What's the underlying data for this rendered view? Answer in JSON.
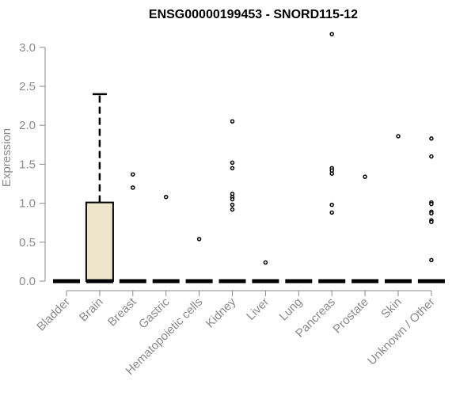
{
  "chart_data": {
    "type": "boxplot",
    "title": "ENSG00000199453 - SNORD115-12",
    "ylabel": "Expression",
    "xlabel": "",
    "ylim": [
      0,
      3.2
    ],
    "yticks": [
      "0.0",
      "0.5",
      "1.0",
      "1.5",
      "2.0",
      "2.5",
      "3.0"
    ],
    "grid": false,
    "box_fill": "#ede6cc",
    "categories": [
      "Bladder",
      "Brain",
      "Breast",
      "Gastric",
      "Hematopoietic cells",
      "Kidney",
      "Liver",
      "Lung",
      "Pancreas",
      "Prostate",
      "Skin",
      "Unknown / Other"
    ],
    "boxes": [
      {
        "category": "Bladder",
        "q1": 0,
        "median": 0,
        "q3": 0,
        "whisker_low": 0,
        "whisker_high": 0,
        "outliers": []
      },
      {
        "category": "Brain",
        "q1": 0,
        "median": 0,
        "q3": 1.01,
        "whisker_low": 0,
        "whisker_high": 2.4,
        "outliers": []
      },
      {
        "category": "Breast",
        "q1": 0,
        "median": 0,
        "q3": 0,
        "whisker_low": 0,
        "whisker_high": 0,
        "outliers": [
          1.37,
          1.2
        ]
      },
      {
        "category": "Gastric",
        "q1": 0,
        "median": 0,
        "q3": 0,
        "whisker_low": 0,
        "whisker_high": 0,
        "outliers": [
          1.08
        ]
      },
      {
        "category": "Hematopoietic cells",
        "q1": 0,
        "median": 0,
        "q3": 0,
        "whisker_low": 0,
        "whisker_high": 0,
        "outliers": [
          0.54
        ]
      },
      {
        "category": "Kidney",
        "q1": 0,
        "median": 0,
        "q3": 0,
        "whisker_low": 0,
        "whisker_high": 0,
        "outliers": [
          2.05,
          1.52,
          1.45,
          1.12,
          1.08,
          1.05,
          0.98,
          0.92
        ]
      },
      {
        "category": "Liver",
        "q1": 0,
        "median": 0,
        "q3": 0,
        "whisker_low": 0,
        "whisker_high": 0,
        "outliers": [
          0.24
        ]
      },
      {
        "category": "Lung",
        "q1": 0,
        "median": 0,
        "q3": 0,
        "whisker_low": 0,
        "whisker_high": 0,
        "outliers": []
      },
      {
        "category": "Pancreas",
        "q1": 0,
        "median": 0,
        "q3": 0,
        "whisker_low": 0,
        "whisker_high": 0,
        "outliers": [
          3.17,
          1.45,
          1.42,
          1.38,
          0.98,
          0.88
        ]
      },
      {
        "category": "Prostate",
        "q1": 0,
        "median": 0,
        "q3": 0,
        "whisker_low": 0,
        "whisker_high": 0,
        "outliers": [
          1.34
        ]
      },
      {
        "category": "Skin",
        "q1": 0,
        "median": 0,
        "q3": 0,
        "whisker_low": 0,
        "whisker_high": 0,
        "outliers": [
          1.86
        ]
      },
      {
        "category": "Unknown / Other",
        "q1": 0,
        "median": 0,
        "q3": 0,
        "whisker_low": 0,
        "whisker_high": 0,
        "outliers": [
          1.83,
          1.6,
          1.01,
          0.99,
          0.89,
          0.87,
          0.78,
          0.76,
          0.27
        ]
      }
    ]
  }
}
